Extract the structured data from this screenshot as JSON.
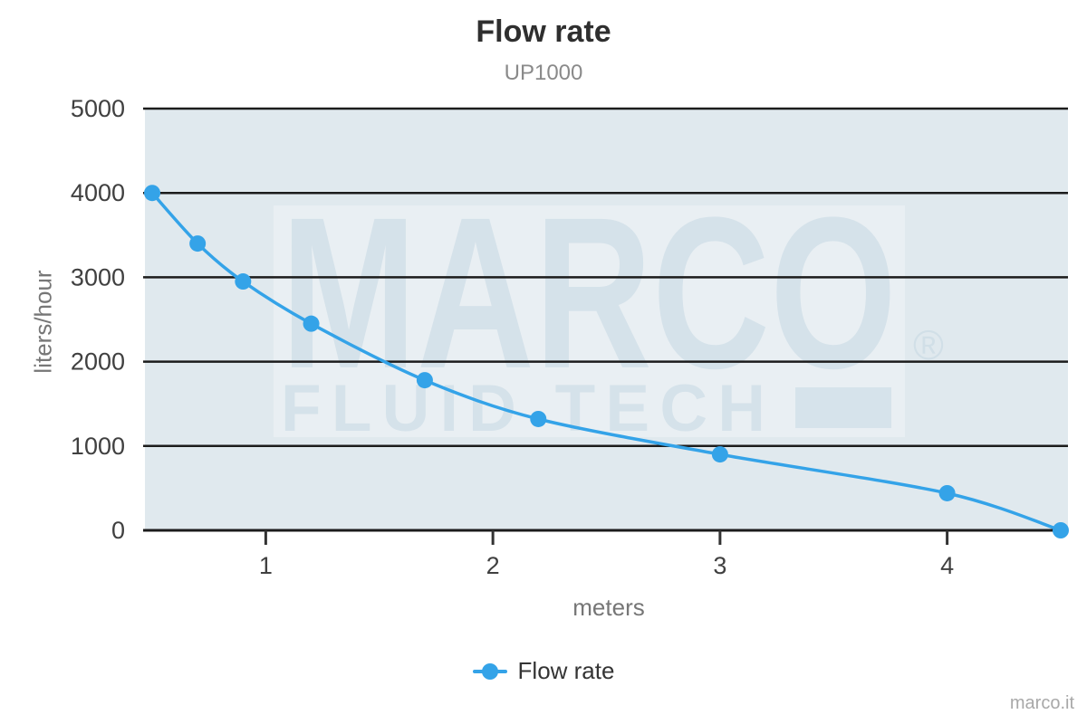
{
  "chart_data": {
    "type": "line",
    "title": "Flow rate",
    "subtitle": "UP1000",
    "xlabel": "meters",
    "ylabel": "liters/hour",
    "legend": [
      "Flow rate"
    ],
    "legend_position": "bottom",
    "series": [
      {
        "name": "Flow rate",
        "points": [
          [
            0.5,
            4000
          ],
          [
            0.7,
            3400
          ],
          [
            0.9,
            2950
          ],
          [
            1.2,
            2450
          ],
          [
            1.7,
            1780
          ],
          [
            2.2,
            1320
          ],
          [
            3.0,
            900
          ],
          [
            4.0,
            440
          ],
          [
            4.5,
            0
          ]
        ]
      }
    ],
    "x_ticks": [
      1,
      2,
      3,
      4
    ],
    "y_ticks": [
      0,
      1000,
      2000,
      3000,
      4000,
      5000
    ],
    "xlim": [
      0.468,
      4.532
    ],
    "ylim": [
      0,
      5000
    ],
    "grid": "horizontal-only",
    "line_color": "#34a3e8",
    "grid_color": "#1c1c1c",
    "plot_bg": "#e0e9ee",
    "tick_label_color": "#404040",
    "axis_title_color": "#767676"
  },
  "watermark": {
    "brand": "MARCO",
    "registered": "®",
    "tagline": "FLUID TECH",
    "color": "#c6d8e3"
  },
  "footer": {
    "text": "marco.it"
  }
}
